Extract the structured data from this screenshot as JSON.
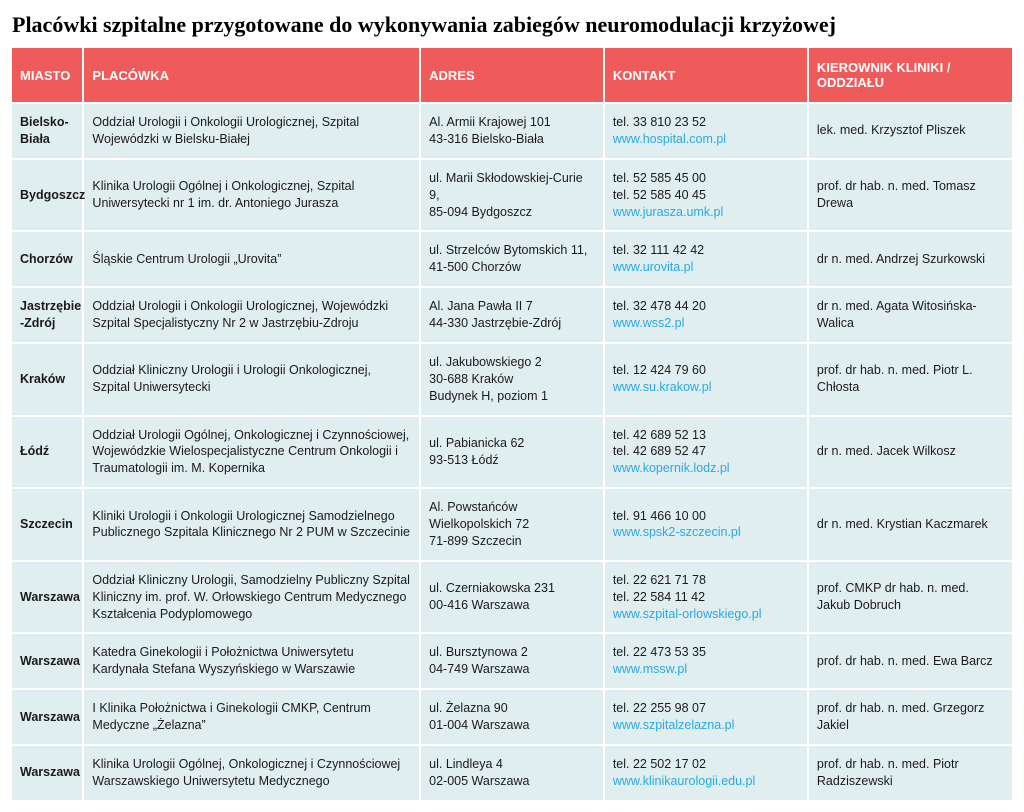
{
  "title": "Placówki szpitalne przygotowane do wykonywania zabiegów neuromodulacji krzyżowej",
  "title_fontsize": 22,
  "header_bg": "#ef5b5b",
  "header_color": "#ffffff",
  "header_fontsize": 13,
  "row_bg": "#e1eef0",
  "row_text_color": "#1a1a1a",
  "link_color": "#29a9e0",
  "cell_fontsize": 12.5,
  "col_widths": [
    "70px",
    "330px",
    "180px",
    "200px",
    "200px"
  ],
  "columns": [
    "MIASTO",
    "PLACÓWKA",
    "ADRES",
    "KONTAKT",
    "KIEROWNIK KLINIKI / ODDZIAŁU"
  ],
  "rows": [
    {
      "city": "Bielsko-Biała",
      "facility": "Oddział Urologii i Onkologii Urologicznej, Szpital Wojewódzki w Bielsku-Białej",
      "address": "Al. Armii Krajowej 101\n43-316 Bielsko-Biała",
      "phones": [
        "tel. 33 810 23 52"
      ],
      "link": "www.hospital.com.pl",
      "head": "lek. med. Krzysztof Pliszek"
    },
    {
      "city": "Bydgoszcz",
      "facility": "Klinika Urologii Ogólnej i Onkologicznej, Szpital Uniwersytecki nr 1 im. dr. Antoniego Jurasza",
      "address": "ul. Marii Skłodowskiej-Curie 9,\n85-094 Bydgoszcz",
      "phones": [
        "tel. 52 585 45 00",
        "tel. 52 585 40 45"
      ],
      "link": "www.jurasza.umk.pl",
      "head": "prof. dr hab. n. med. Tomasz Drewa"
    },
    {
      "city": "Chorzów",
      "facility": "Śląskie Centrum Urologii „Urovita”",
      "address": "ul. Strzelców Bytomskich 11,\n41-500 Chorzów",
      "phones": [
        "tel. 32 111 42 42"
      ],
      "link": "www.urovita.pl",
      "head": "dr n. med. Andrzej Szurkowski"
    },
    {
      "city": "Jastrzębie\n-Zdrój",
      "facility": "Oddział Urologii i Onkologii Urologicznej, Wojewódzki Szpital Specjalistyczny Nr 2 w Jastrzębiu-Zdroju",
      "address": "Al. Jana Pawła II 7\n44-330 Jastrzębie-Zdrój",
      "phones": [
        "tel. 32 478 44 20"
      ],
      "link": "www.wss2.pl",
      "head": "dr n. med. Agata Witosińska-Walica"
    },
    {
      "city": "Kraków",
      "facility": "Oddział Kliniczny Urologii i Urologii Onkologicznej, Szpital Uniwersytecki",
      "address": "ul. Jakubowskiego 2\n30-688 Kraków\nBudynek H, poziom 1",
      "phones": [
        "tel. 12 424 79 60"
      ],
      "link": "www.su.krakow.pl",
      "head": "prof. dr hab. n. med. Piotr L. Chłosta"
    },
    {
      "city": "Łódź",
      "facility": "Oddział Urologii Ogólnej, Onkologicznej i Czynnościowej, Wojewódzkie Wielospecjalistyczne Centrum Onkologii i Traumatologii im. M. Kopernika",
      "address": "ul. Pabianicka 62\n93-513 Łódź",
      "phones": [
        "tel. 42 689 52 13",
        "tel. 42 689 52 47"
      ],
      "link": "www.kopernik.lodz.pl",
      "head": "dr n. med. Jacek Wilkosz"
    },
    {
      "city": "Szczecin",
      "facility": "Kliniki Urologii i Onkologii Urologicznej Samodzielnego Publicznego Szpitala Klinicznego Nr 2 PUM w Szczecinie",
      "address": "Al. Powstańców Wielkopolskich 72\n71-899 Szczecin",
      "phones": [
        "tel. 91 466 10 00"
      ],
      "link": "www.spsk2-szczecin.pl",
      "head": "dr n. med. Krystian Kaczmarek"
    },
    {
      "city": "Warszawa",
      "facility": "Oddział Kliniczny Urologii, Samodzielny Publiczny Szpital Kliniczny im. prof. W. Orłowskiego Centrum Medycznego Kształcenia Podyplomowego",
      "address": "ul. Czerniakowska 231\n00-416 Warszawa",
      "phones": [
        "tel. 22 621 71 78",
        "tel. 22 584 11 42"
      ],
      "link": "www.szpital-orlowskiego.pl",
      "head": "prof. CMKP dr hab. n. med. Jakub Dobruch"
    },
    {
      "city": "Warszawa",
      "facility": "Katedra Ginekologii i Położnictwa Uniwersytetu Kardynała Stefana Wyszyńskiego w Warszawie",
      "address": "ul. Bursztynowa 2\n04-749 Warszawa",
      "phones": [
        "tel. 22 473 53 35"
      ],
      "link": "www.mssw.pl",
      "head": "prof. dr hab. n. med. Ewa Barcz"
    },
    {
      "city": "Warszawa",
      "facility": "I Klinika Położnictwa i Ginekologii CMKP, Centrum Medyczne „Żelazna”",
      "address": "ul. Żelazna 90\n01-004 Warszawa",
      "phones": [
        "tel. 22 255 98 07"
      ],
      "link": "www.szpitalzelazna.pl",
      "head": "prof. dr hab. n. med. Grzegorz Jakiel"
    },
    {
      "city": "Warszawa",
      "facility": "Klinika Urologii Ogólnej, Onkologicznej i Czynnościowej Warszawskiego Uniwersytetu Medycznego",
      "address": "ul. Lindleya 4\n02-005 Warszawa",
      "phones": [
        "tel. 22 502 17 02"
      ],
      "link": "www.klinikaurologii.edu.pl",
      "head": "prof. dr hab. n. med. Piotr Radziszewski"
    }
  ]
}
